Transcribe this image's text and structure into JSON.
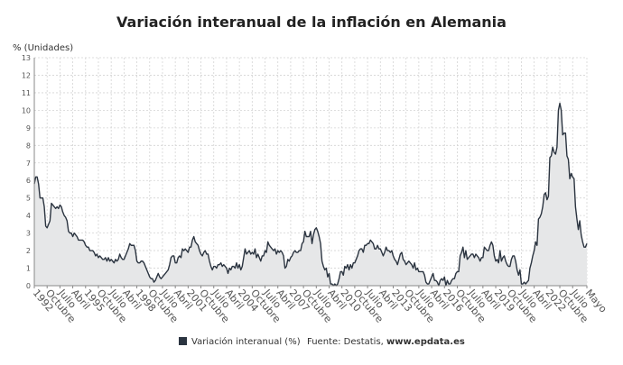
{
  "chart_data": {
    "type": "area-line",
    "title": "Variación interanual de la inflación en Alemania",
    "y_axis_label": "% (Unidades)",
    "legend": "Variación interanual (%)",
    "source": "Fuente: Destatis,",
    "source_link": "www.epdata.es",
    "color": "#2b3440",
    "fill": "#e6e7e8",
    "grid": true,
    "ylim": [
      0,
      13
    ],
    "yticks": [
      0,
      1,
      2,
      3,
      4,
      5,
      6,
      7,
      8,
      9,
      10,
      11,
      12,
      13
    ],
    "categories": [
      "1992",
      null,
      null,
      null,
      null,
      null,
      null,
      null,
      null,
      "Octubre",
      null,
      null,
      null,
      null,
      null,
      null,
      null,
      null,
      "Julio",
      null,
      null,
      null,
      null,
      null,
      null,
      null,
      null,
      "Abril",
      null,
      null,
      null,
      null,
      null,
      null,
      null,
      null,
      "1995",
      null,
      null,
      null,
      null,
      null,
      null,
      null,
      null,
      "Octubre",
      null,
      null,
      null,
      null,
      null,
      null,
      null,
      null,
      "Julio",
      null,
      null,
      null,
      null,
      null,
      null,
      null,
      null,
      "Abril",
      null,
      null,
      null,
      null,
      null,
      null,
      null,
      null,
      "1998",
      null,
      null,
      null,
      null,
      null,
      null,
      null,
      null,
      "Octubre",
      null,
      null,
      null,
      null,
      null,
      null,
      null,
      null,
      "Julio",
      null,
      null,
      null,
      null,
      null,
      null,
      null,
      null,
      "Abril",
      null,
      null,
      null,
      null,
      null,
      null,
      null,
      null,
      "2001",
      null,
      null,
      null,
      null,
      null,
      null,
      null,
      null,
      "Octubre",
      null,
      null,
      null,
      null,
      null,
      null,
      null,
      null,
      "Julio",
      null,
      null,
      null,
      null,
      null,
      null,
      null,
      null,
      "Abril",
      null,
      null,
      null,
      null,
      null,
      null,
      null,
      null,
      "2004",
      null,
      null,
      null,
      null,
      null,
      null,
      null,
      null,
      "Octubre",
      null,
      null,
      null,
      null,
      null,
      null,
      null,
      null,
      "Julio",
      null,
      null,
      null,
      null,
      null,
      null,
      null,
      null,
      "Abril",
      null,
      null,
      null,
      null,
      null,
      null,
      null,
      null,
      "2007",
      null,
      null,
      null,
      null,
      null,
      null,
      null,
      null,
      "Octubre",
      null,
      null,
      null,
      null,
      null,
      null,
      null,
      null,
      "Julio",
      null,
      null,
      null,
      null,
      null,
      null,
      null,
      null,
      "Abril",
      null,
      null,
      null,
      null,
      null,
      null,
      null,
      null,
      "2010",
      null,
      null,
      null,
      null,
      null,
      null,
      null,
      null,
      "Octubre",
      null,
      null,
      null,
      null,
      null,
      null,
      null,
      null,
      "Julio",
      null,
      null,
      null,
      null,
      null,
      null,
      null,
      null,
      "Abril",
      null,
      null,
      null,
      null,
      null,
      null,
      null,
      null,
      "2013",
      null,
      null,
      null,
      null,
      null,
      null,
      null,
      null,
      "Octubre",
      null,
      null,
      null,
      null,
      null,
      null,
      null,
      null,
      "Julio",
      null,
      null,
      null,
      null,
      null,
      null,
      null,
      null,
      "Abril",
      null,
      null,
      null,
      null,
      null,
      null,
      null,
      null,
      "2016",
      null,
      null,
      null,
      null,
      null,
      null,
      null,
      null,
      "Octubre",
      null,
      null,
      null,
      null,
      null,
      null,
      null,
      null,
      "Julio",
      null,
      null,
      null,
      null,
      null,
      null,
      null,
      null,
      "Abril",
      null,
      null,
      null,
      null,
      null,
      null,
      null,
      null,
      "2019",
      null,
      null,
      null,
      null,
      null,
      null,
      null,
      null,
      "Octubre",
      null,
      null,
      null,
      null,
      null,
      null,
      null,
      null,
      "Julio",
      null,
      null,
      null,
      null,
      null,
      null,
      null,
      null,
      "Abril",
      null,
      null,
      null,
      null,
      null,
      null,
      null,
      null,
      "2022",
      null,
      null,
      null,
      null,
      null,
      null,
      null,
      null,
      "Octubre",
      null,
      null,
      null,
      null,
      null,
      null,
      null,
      null,
      "Julio",
      null,
      null,
      null,
      null,
      null,
      null,
      null,
      null,
      null,
      "Mayo"
    ],
    "values": [
      5.8,
      6.2,
      6.2,
      5.8,
      5.0,
      5.0,
      5.0,
      4.5,
      3.4,
      3.3,
      3.5,
      3.7,
      4.7,
      4.6,
      4.5,
      4.4,
      4.5,
      4.4,
      4.6,
      4.5,
      4.2,
      4.0,
      3.9,
      3.7,
      3.1,
      3.0,
      3.0,
      2.8,
      3.0,
      2.9,
      2.8,
      2.6,
      2.6,
      2.6,
      2.6,
      2.5,
      2.3,
      2.2,
      2.2,
      2.0,
      2.0,
      2.0,
      1.9,
      1.7,
      1.8,
      1.6,
      1.7,
      1.6,
      1.5,
      1.5,
      1.6,
      1.4,
      1.6,
      1.4,
      1.5,
      1.4,
      1.3,
      1.5,
      1.4,
      1.5,
      1.8,
      1.6,
      1.5,
      1.5,
      1.7,
      1.9,
      2.1,
      2.4,
      2.3,
      2.3,
      2.3,
      2.0,
      1.4,
      1.3,
      1.3,
      1.4,
      1.4,
      1.3,
      1.1,
      0.9,
      0.7,
      0.5,
      0.4,
      0.4,
      0.2,
      0.3,
      0.5,
      0.7,
      0.5,
      0.4,
      0.5,
      0.6,
      0.7,
      0.8,
      0.9,
      1.2,
      1.6,
      1.7,
      1.7,
      1.3,
      1.3,
      1.6,
      1.7,
      1.6,
      2.1,
      2.0,
      2.1,
      2.0,
      1.9,
      2.2,
      2.2,
      2.6,
      2.8,
      2.5,
      2.4,
      2.3,
      2.0,
      1.8,
      1.7,
      1.9,
      2.0,
      1.8,
      1.8,
      1.4,
      1.1,
      0.9,
      1.1,
      1.1,
      1.0,
      1.2,
      1.2,
      1.3,
      1.1,
      1.2,
      1.1,
      1.0,
      0.7,
      1.0,
      0.9,
      1.1,
      1.1,
      1.0,
      1.3,
      1.0,
      1.2,
      0.9,
      1.1,
      1.6,
      2.1,
      1.8,
      1.9,
      2.0,
      1.8,
      1.9,
      1.8,
      2.1,
      1.6,
      1.8,
      1.6,
      1.4,
      1.7,
      1.7,
      2.0,
      1.9,
      2.5,
      2.3,
      2.2,
      2.1,
      2.0,
      2.1,
      1.8,
      2.0,
      1.9,
      2.0,
      1.9,
      1.7,
      1.0,
      1.1,
      1.5,
      1.4,
      1.6,
      1.7,
      1.9,
      2.0,
      1.9,
      1.9,
      2.0,
      2.0,
      2.4,
      2.5,
      3.1,
      2.8,
      2.8,
      2.8,
      3.1,
      2.4,
      2.9,
      3.2,
      3.3,
      3.1,
      2.8,
      2.4,
      1.4,
      1.1,
      0.9,
      1.0,
      0.5,
      0.7,
      0.1,
      0.1,
      0.0,
      0.1,
      0.0,
      0.1,
      0.4,
      0.8,
      0.8,
      0.6,
      1.1,
      1.0,
      1.2,
      0.9,
      1.2,
      1.0,
      1.3,
      1.3,
      1.5,
      1.7,
      2.0,
      2.1,
      2.1,
      1.9,
      2.3,
      2.3,
      2.4,
      2.4,
      2.6,
      2.5,
      2.4,
      2.1,
      2.1,
      2.3,
      2.1,
      2.1,
      1.9,
      1.7,
      1.9,
      2.2,
      2.0,
      2.0,
      1.9,
      2.0,
      1.7,
      1.5,
      1.4,
      1.2,
      1.5,
      1.8,
      1.9,
      1.5,
      1.4,
      1.2,
      1.3,
      1.4,
      1.3,
      1.2,
      1.0,
      1.3,
      0.9,
      1.0,
      0.8,
      0.8,
      0.8,
      0.8,
      0.6,
      0.2,
      0.1,
      0.1,
      0.3,
      0.5,
      0.7,
      0.3,
      0.3,
      0.2,
      0.0,
      0.3,
      0.4,
      0.3,
      0.5,
      0.0,
      0.3,
      0.1,
      0.1,
      0.3,
      0.4,
      0.4,
      0.7,
      0.8,
      0.8,
      1.7,
      1.9,
      2.2,
      1.6,
      2.0,
      1.5,
      1.6,
      1.7,
      1.8,
      1.8,
      1.6,
      1.8,
      1.7,
      1.6,
      1.4,
      1.6,
      1.6,
      2.2,
      2.1,
      2.0,
      2.0,
      2.3,
      2.5,
      2.3,
      1.7,
      1.4,
      1.5,
      1.3,
      2.0,
      1.4,
      1.6,
      1.7,
      1.4,
      1.2,
      1.1,
      1.1,
      1.5,
      1.7,
      1.7,
      1.4,
      0.9,
      0.6,
      0.9,
      0.1,
      0.1,
      0.2,
      0.1,
      0.2,
      0.3,
      1.0,
      1.3,
      1.7,
      2.0,
      2.5,
      2.3,
      3.8,
      3.9,
      4.1,
      4.5,
      5.2,
      5.3,
      4.9,
      5.1,
      7.3,
      7.4,
      7.9,
      7.6,
      7.5,
      7.9,
      10.0,
      10.4,
      10.0,
      8.6,
      8.7,
      8.7,
      7.4,
      7.2,
      6.1,
      6.4,
      6.2,
      6.1,
      4.5,
      3.8,
      3.2,
      3.7,
      2.9,
      2.5,
      2.2,
      2.2,
      2.4
    ]
  }
}
